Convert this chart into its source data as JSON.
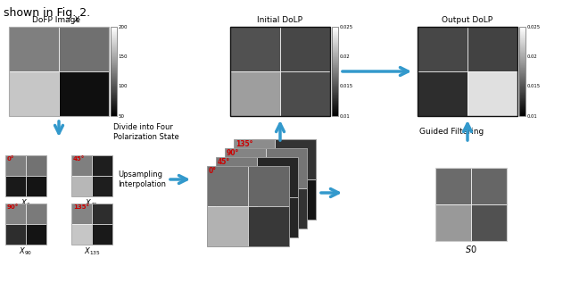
{
  "bg_color": "#ffffff",
  "arrow_color": "#3399cc",
  "red_color": "#cc0000",
  "divide_label": "Divide into Four\nPolarization State",
  "upsample_label": "Upsampling\nInterpolation",
  "guided_label": "Guided Filtering",
  "angle_labels": [
    "0°",
    "45°",
    "90°",
    "135°"
  ],
  "colorbar_gray_ticks": [
    [
      200,
      "200"
    ],
    [
      150,
      "150"
    ],
    [
      100,
      "100"
    ],
    [
      50,
      "50"
    ]
  ],
  "colorbar_dolp_ticks": [
    [
      0.025,
      "0.025"
    ],
    [
      0.02,
      "0.02"
    ],
    [
      0.015,
      "0.015"
    ],
    [
      0.01,
      "0.01"
    ]
  ]
}
